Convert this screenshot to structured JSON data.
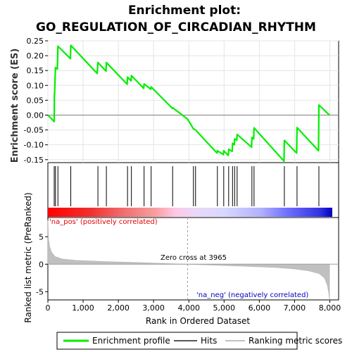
{
  "title_line1": "Enrichment plot:",
  "title_line2": "GO_REGULATION_OF_CIRCADIAN_RHYTHM",
  "legend": {
    "profile": "Enrichment profile",
    "hits": "Hits",
    "ranking": "Ranking metric scores"
  },
  "annotations": {
    "pos": "'na_pos' (positively correlated)",
    "neg": "'na_neg' (negatively correlated)",
    "zero": "Zero cross at 3965"
  },
  "colors": {
    "profile": "#00ee00",
    "hits": "#000000",
    "ranking": "#c0c0c0",
    "zero_line": "#808080"
  },
  "chart_data": {
    "type": "line",
    "title": "Enrichment plot: GO_REGULATION_OF_CIRCADIAN_RHYTHM",
    "xlabel": "Rank in Ordered Dataset",
    "ylabel_top": "Enrichment score (ES)",
    "ylabel_bottom": "Ranked list metric (PreRanked)",
    "xlim": [
      0,
      8250
    ],
    "ylim_top": [
      -0.16,
      0.25
    ],
    "ylim_bottom": [
      -6.5,
      8.5
    ],
    "x_ticks": [
      0,
      1000,
      2000,
      3000,
      4000,
      5000,
      6000,
      7000,
      8000
    ],
    "x_tick_labels": [
      "0",
      "1,000",
      "2,000",
      "3,000",
      "4,000",
      "5,000",
      "6,000",
      "7,000",
      "8,000"
    ],
    "y_ticks_top": [
      -0.15,
      -0.1,
      -0.05,
      0.0,
      0.05,
      0.1,
      0.15,
      0.2,
      0.25
    ],
    "y_tick_labels_top": [
      "-0.15",
      "-0.10",
      "-0.05",
      "0.00",
      "0.05",
      "0.10",
      "0.15",
      "0.20",
      "0.25"
    ],
    "y_ticks_bottom": [
      5,
      0,
      -5
    ],
    "y_tick_labels_bottom": [
      "5",
      "0",
      "-5"
    ],
    "zero_cross": 3965,
    "es_profile": [
      [
        0,
        0.0
      ],
      [
        180,
        -0.022
      ],
      [
        185,
        0.072
      ],
      [
        190,
        0.07
      ],
      [
        215,
        0.16
      ],
      [
        270,
        0.155
      ],
      [
        285,
        0.232
      ],
      [
        640,
        0.19
      ],
      [
        650,
        0.235
      ],
      [
        1400,
        0.14
      ],
      [
        1420,
        0.177
      ],
      [
        1650,
        0.148
      ],
      [
        1660,
        0.177
      ],
      [
        2250,
        0.104
      ],
      [
        2260,
        0.128
      ],
      [
        2360,
        0.115
      ],
      [
        2370,
        0.133
      ],
      [
        2720,
        0.09
      ],
      [
        2730,
        0.105
      ],
      [
        2920,
        0.087
      ],
      [
        2930,
        0.095
      ],
      [
        3530,
        0.023
      ],
      [
        3540,
        0.025
      ],
      [
        3960,
        -0.013
      ],
      [
        4130,
        -0.046
      ],
      [
        4190,
        -0.05
      ],
      [
        4800,
        -0.128
      ],
      [
        4810,
        -0.12
      ],
      [
        4980,
        -0.133
      ],
      [
        4990,
        -0.12
      ],
      [
        5120,
        -0.136
      ],
      [
        5130,
        -0.115
      ],
      [
        5230,
        -0.122
      ],
      [
        5240,
        -0.095
      ],
      [
        5290,
        -0.1
      ],
      [
        5300,
        -0.08
      ],
      [
        5360,
        -0.085
      ],
      [
        5370,
        -0.065
      ],
      [
        5780,
        -0.108
      ],
      [
        5790,
        -0.075
      ],
      [
        5840,
        -0.08
      ],
      [
        5850,
        -0.043
      ],
      [
        6700,
        -0.155
      ],
      [
        6710,
        -0.085
      ],
      [
        7060,
        -0.128
      ],
      [
        7070,
        -0.042
      ],
      [
        7680,
        -0.12
      ],
      [
        7690,
        0.034
      ],
      [
        7990,
        0.0
      ]
    ],
    "hits": [
      180,
      215,
      285,
      650,
      1420,
      1660,
      2260,
      2370,
      2730,
      2930,
      3540,
      4130,
      4190,
      4810,
      4990,
      5130,
      5240,
      5300,
      5370,
      5790,
      5850,
      6710,
      7070,
      7690
    ],
    "ranking_curve": [
      [
        0,
        8.0
      ],
      [
        20,
        4.5
      ],
      [
        50,
        3.2
      ],
      [
        100,
        2.2
      ],
      [
        200,
        1.4
      ],
      [
        400,
        0.95
      ],
      [
        800,
        0.7
      ],
      [
        1500,
        0.5
      ],
      [
        2500,
        0.3
      ],
      [
        3500,
        0.08
      ],
      [
        3965,
        0.0
      ],
      [
        4500,
        -0.12
      ],
      [
        5500,
        -0.35
      ],
      [
        6500,
        -0.6
      ],
      [
        7000,
        -0.85
      ],
      [
        7400,
        -1.2
      ],
      [
        7700,
        -1.7
      ],
      [
        7850,
        -2.5
      ],
      [
        7930,
        -3.8
      ],
      [
        7970,
        -5.2
      ],
      [
        7990,
        -6.5
      ]
    ]
  }
}
